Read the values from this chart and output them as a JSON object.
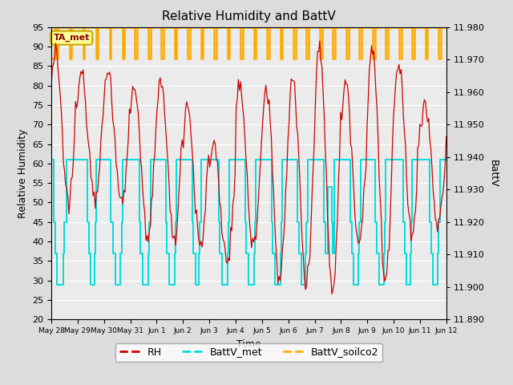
{
  "title": "Relative Humidity and BattV",
  "ylabel_left": "Relative Humidity",
  "ylabel_right": "BattV",
  "xlabel": "Time",
  "ylim_left": [
    20,
    95
  ],
  "ylim_right": [
    11.89,
    11.98
  ],
  "bg_color": "#dcdcdc",
  "plot_bg_color": "#ebebeb",
  "annotation_text": "TA_met",
  "annotation_bg": "#ffff99",
  "annotation_border": "#ccaa00",
  "annotation_text_color": "#8b0000",
  "rh_color": "#cc0000",
  "battv_met_color": "#00dddd",
  "battv_soilco2_color": "#ffaa00",
  "x_tick_labels": [
    "May 28",
    "May 29",
    "May 30",
    "May 31",
    "Jun 1",
    "Jun 2",
    "Jun 3",
    "Jun 4",
    "Jun 5",
    "Jun 6",
    "Jun 7",
    "Jun 8",
    "Jun 9",
    "Jun 10",
    "Jun 11",
    "Jun 12"
  ],
  "right_ticks": [
    11.89,
    11.9,
    11.91,
    11.92,
    11.93,
    11.94,
    11.95,
    11.96,
    11.97,
    11.98
  ],
  "left_ticks": [
    20,
    25,
    30,
    35,
    40,
    45,
    50,
    55,
    60,
    65,
    70,
    75,
    80,
    85,
    90,
    95
  ],
  "figsize": [
    6.4,
    4.8
  ],
  "dpi": 100
}
